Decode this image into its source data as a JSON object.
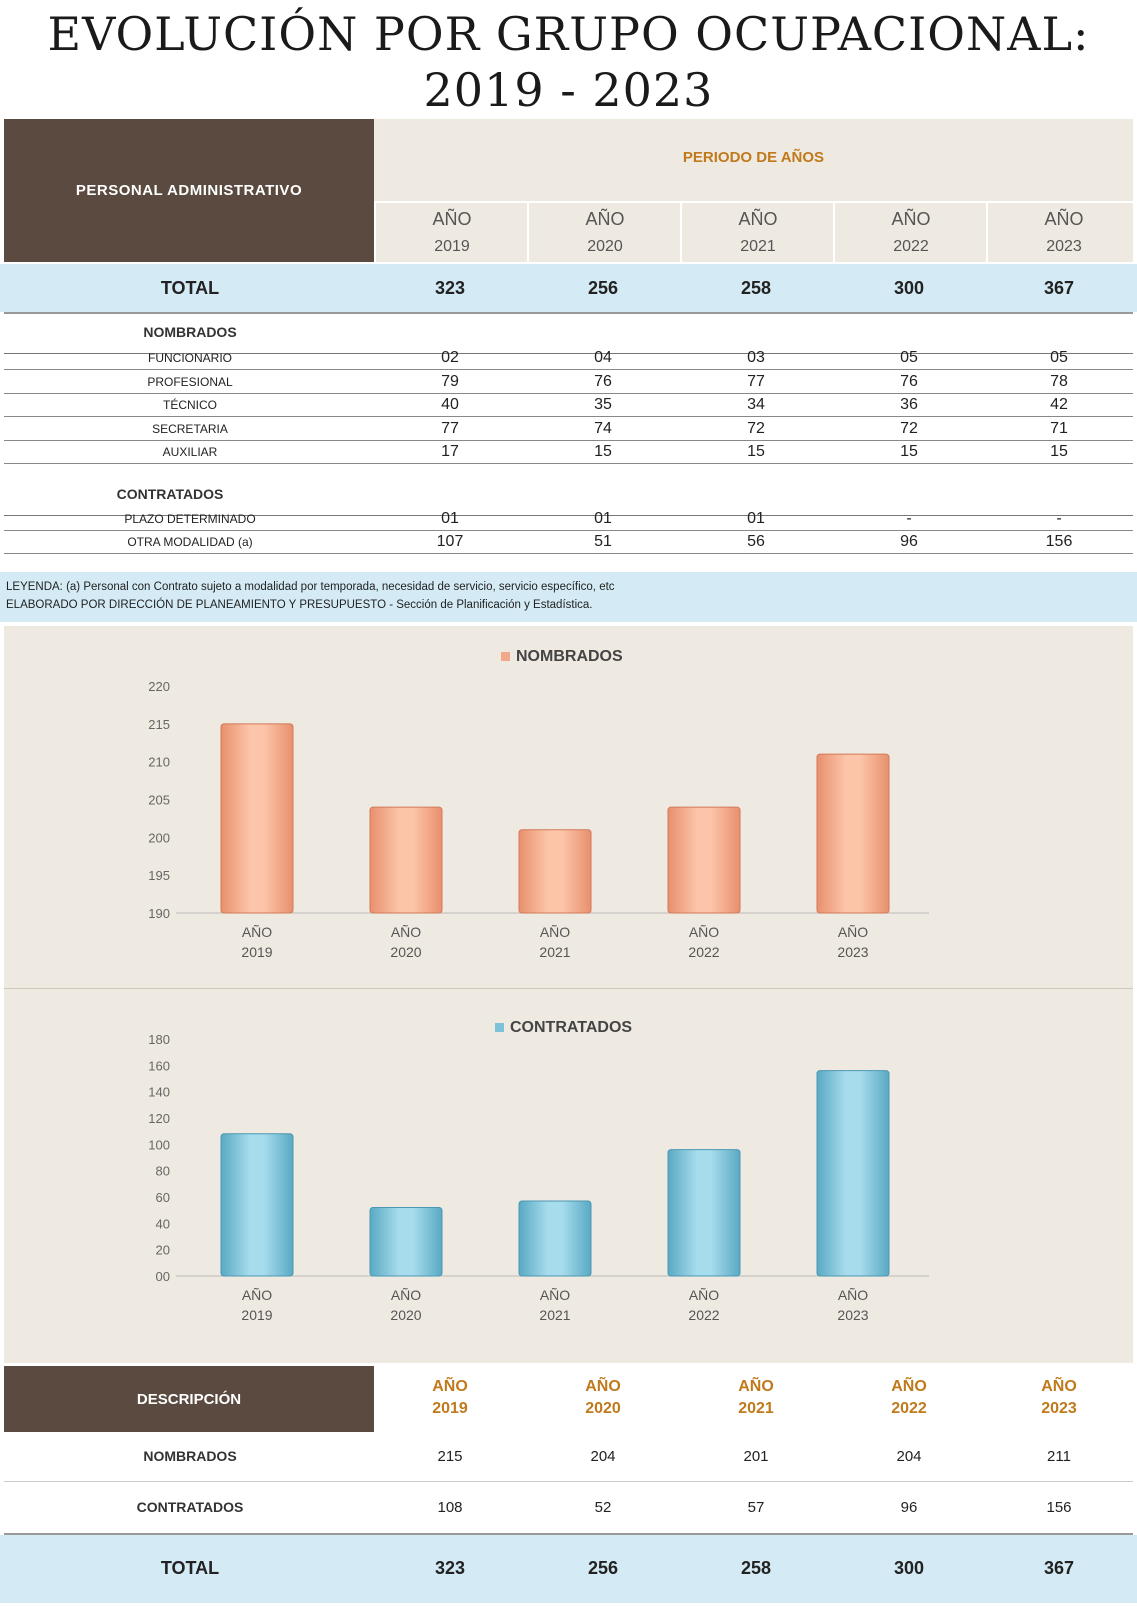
{
  "title": {
    "line1": "EVOLUCIÓN POR GRUPO OCUPACIONAL:",
    "line2": "2019 - 2023"
  },
  "header": {
    "left": "PERSONAL  ADMINISTRATIVO",
    "periodo": "PERIODO DE AÑOS",
    "year_word": "AÑO",
    "years": [
      "2019",
      "2020",
      "2021",
      "2022",
      "2023"
    ]
  },
  "total": {
    "label": "TOTAL",
    "values": [
      "323",
      "256",
      "258",
      "300",
      "367"
    ]
  },
  "nombrados": {
    "label": "NOMBRADOS",
    "rows": [
      {
        "label": "FUNCIONARIO",
        "values": [
          "02",
          "04",
          "03",
          "05",
          "05"
        ]
      },
      {
        "label": "PROFESIONAL",
        "values": [
          "79",
          "76",
          "77",
          "76",
          "78"
        ]
      },
      {
        "label": "TÉCNICO",
        "values": [
          "40",
          "35",
          "34",
          "36",
          "42"
        ]
      },
      {
        "label": "SECRETARIA",
        "values": [
          "77",
          "74",
          "72",
          "72",
          "71"
        ]
      },
      {
        "label": "AUXILIAR",
        "values": [
          "17",
          "15",
          "15",
          "15",
          "15"
        ]
      }
    ]
  },
  "contratados": {
    "label": "CONTRATADOS",
    "rows": [
      {
        "label": "PLAZO DETERMINADO",
        "values": [
          "01",
          "01",
          "01",
          "-",
          "-"
        ]
      },
      {
        "label": "OTRA MODALIDAD (a)",
        "values": [
          "107",
          "51",
          "56",
          "96",
          "156"
        ]
      }
    ]
  },
  "legend": {
    "line1": "LEYENDA: (a) Personal con Contrato sujeto a modalidad por temporada, necesidad de servicio, servicio específico, etc",
    "line2": "ELABORADO POR DIRECCIÓN DE PLANEAMIENTO Y PRESUPUESTO - Sección de Planificación y Estadística."
  },
  "colors": {
    "brown": "#5a4a3f",
    "orange_text": "#c07a1c",
    "light_blue": "#d4ebf5",
    "beige": "#efeae1",
    "bar_orange": "#f2a98a",
    "bar_blue": "#7cc3d9"
  },
  "chart_data": [
    {
      "type": "bar",
      "title": "NOMBRADOS",
      "categories": [
        "AÑO\n2019",
        "AÑO\n2020",
        "AÑO\n2021",
        "AÑO\n2022",
        "AÑO\n2023"
      ],
      "cat_line1": [
        "AÑO",
        "AÑO",
        "AÑO",
        "AÑO",
        "AÑO"
      ],
      "cat_line2": [
        "2019",
        "2020",
        "2021",
        "2022",
        "2023"
      ],
      "series": [
        {
          "name": "NOMBRADOS",
          "values": [
            215,
            204,
            201,
            204,
            211
          ]
        }
      ],
      "ylim": [
        190,
        220
      ],
      "yticks": [
        "190",
        "195",
        "200",
        "205",
        "210",
        "215",
        "220"
      ],
      "legend_position": "top-center",
      "grid": false
    },
    {
      "type": "bar",
      "title": "CONTRATADOS",
      "categories": [
        "AÑO\n2019",
        "AÑO\n2020",
        "AÑO\n2021",
        "AÑO\n2022",
        "AÑO\n2023"
      ],
      "cat_line1": [
        "AÑO",
        "AÑO",
        "AÑO",
        "AÑO",
        "AÑO"
      ],
      "cat_line2": [
        "2019",
        "2020",
        "2021",
        "2022",
        "2023"
      ],
      "series": [
        {
          "name": "CONTRATADOS",
          "values": [
            108,
            52,
            57,
            96,
            156
          ]
        }
      ],
      "ylim": [
        0,
        180
      ],
      "yticks": [
        "00",
        "20",
        "40",
        "60",
        "80",
        "100",
        "120",
        "140",
        "160",
        "180"
      ],
      "legend_position": "top-center",
      "grid": false
    }
  ],
  "summary": {
    "header_left": "DESCRIPCIÓN",
    "year_word": "AÑO",
    "years": [
      "2019",
      "2020",
      "2021",
      "2022",
      "2023"
    ],
    "rows": [
      {
        "label": "NOMBRADOS",
        "values": [
          "215",
          "204",
          "201",
          "204",
          "211"
        ]
      },
      {
        "label": "CONTRATADOS",
        "values": [
          "108",
          "52",
          "57",
          "96",
          "156"
        ]
      }
    ],
    "total": {
      "label": "TOTAL",
      "values": [
        "323",
        "256",
        "258",
        "300",
        "367"
      ]
    }
  }
}
